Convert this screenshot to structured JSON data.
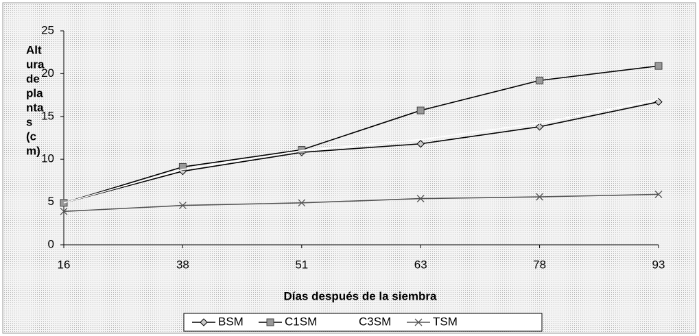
{
  "chart_data": {
    "type": "line",
    "ylabel_lines": [
      "Alt",
      "ura",
      "de",
      "pla",
      "nta",
      "s",
      "(c",
      "m)"
    ],
    "xlabel": "Días después de la siembra",
    "categories": [
      "16",
      "38",
      "51",
      "63",
      "78",
      "93"
    ],
    "series": [
      {
        "name": "BSM",
        "color": "#000000",
        "marker": "diamond",
        "values": [
          4.9,
          8.6,
          10.8,
          11.8,
          13.8,
          16.7
        ]
      },
      {
        "name": "C1SM",
        "color": "#000000",
        "marker": "square",
        "values": [
          4.9,
          9.1,
          11.1,
          15.7,
          19.2,
          20.9
        ]
      },
      {
        "name": "C3SM",
        "color": "#ffffff",
        "marker": "none",
        "values": [
          4.9,
          8.8,
          11.0,
          12.3,
          14.2,
          17.0
        ]
      },
      {
        "name": "TSM",
        "color": "#555555",
        "marker": "x",
        "values": [
          3.9,
          4.6,
          4.9,
          5.4,
          5.6,
          5.9
        ]
      }
    ],
    "ylim": [
      0,
      25
    ],
    "yticks": [
      0,
      5,
      10,
      15,
      20,
      25
    ],
    "grid": false
  }
}
